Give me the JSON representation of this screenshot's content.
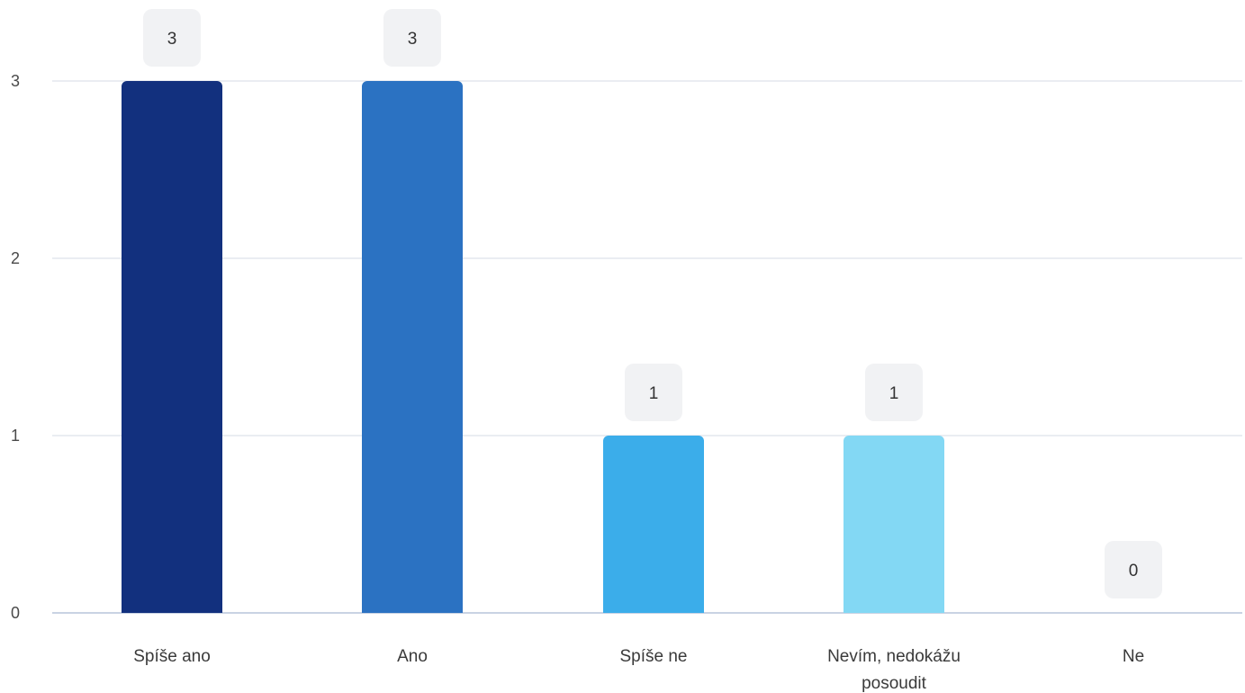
{
  "chart_data": {
    "type": "bar",
    "categories": [
      "Spíše ano",
      "Ano",
      "Spíše ne",
      [
        "Nevím, nedokážu",
        "posoudit"
      ],
      "Ne"
    ],
    "values": [
      3,
      3,
      1,
      1,
      0
    ],
    "data_labels": [
      "3",
      "3",
      "1",
      "1",
      "0"
    ],
    "colors": [
      "#12307e",
      "#2b72c2",
      "#3badea",
      "#83d8f4",
      "#b7e6f7"
    ],
    "y_ticks": [
      "0",
      "1",
      "2",
      "3"
    ],
    "ylim": [
      0,
      3
    ],
    "grid": true,
    "legend": "none",
    "title": "",
    "xlabel": "",
    "ylabel": ""
  }
}
